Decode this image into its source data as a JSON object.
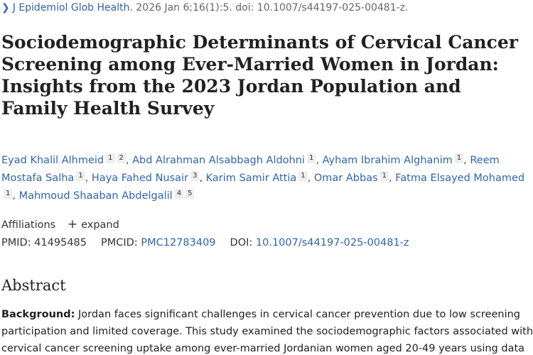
{
  "citation": {
    "journal": "J Epidemiol Glob Health",
    "details": "2026 Jan 6;16(1):5. doi: 10.1007/s44197-025-00481-z."
  },
  "title": "Sociodemographic Determinants of Cervical Cancer Screening among Ever-Married Women in Jordan: Insights from the 2023 Jordan Population and Family Health Survey",
  "authors": [
    {
      "name": "Eyad Khalil Alhmeid",
      "sups": [
        "1",
        "2"
      ]
    },
    {
      "name": "Abd Alrahman Alsabbagh Aldohni",
      "sups": [
        "1"
      ]
    },
    {
      "name": "Ayham Ibrahim Alghanim",
      "sups": [
        "1"
      ]
    },
    {
      "name": "Reem Mostafa Salha",
      "sups": [
        "1"
      ]
    },
    {
      "name": "Haya Fahed Nusair",
      "sups": [
        "3"
      ]
    },
    {
      "name": "Karim Samir Attia",
      "sups": [
        "1"
      ]
    },
    {
      "name": "Omar Abbas",
      "sups": [
        "1"
      ]
    },
    {
      "name": "Fatma Elsayed Mohamed",
      "sups": [
        "1"
      ]
    },
    {
      "name": "Mahmoud Shaaban Abdelgalil",
      "sups": [
        "4",
        "5"
      ]
    }
  ],
  "affiliations": {
    "label": "Affiliations",
    "expand_label": "expand"
  },
  "identifiers": {
    "pmid_label": "PMID:",
    "pmid": "41495485",
    "pmcid_label": "PMCID:",
    "pmcid": "PMC12783409",
    "doi_label": "DOI:",
    "doi": "10.1007/s44197-025-00481-z"
  },
  "abstract": {
    "heading": "Abstract",
    "background_label": "Background:",
    "background_text": "Jordan faces significant challenges in cervical cancer prevention due to low screening participation and limited coverage. This study examined the sociodemographic factors associated with cervical cancer screening uptake among ever-married Jordanian women aged 20-49 years using data"
  }
}
